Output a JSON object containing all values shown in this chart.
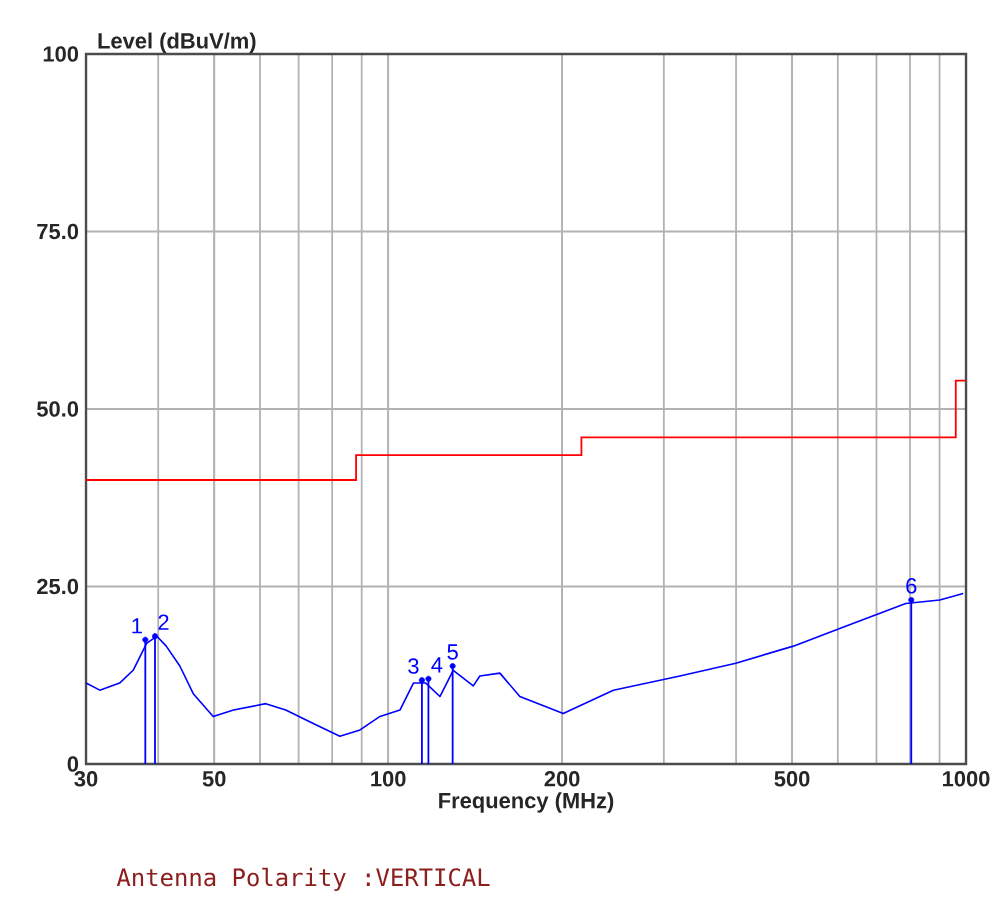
{
  "chart_data": {
    "type": "line",
    "xlabel": "Frequency (MHz)",
    "ylabel": "Level (dBuV/m)",
    "annotations": [
      {
        "text": "1",
        "x": 38.0,
        "y": 17.5
      },
      {
        "text": "2",
        "x": 39.5,
        "y": 18.0
      },
      {
        "text": "3",
        "x": 114.4,
        "y": 11.8
      },
      {
        "text": "4",
        "x": 117.4,
        "y": 12.0
      },
      {
        "text": "5",
        "x": 129.3,
        "y": 13.8
      },
      {
        "text": "6",
        "x": 804,
        "y": 23.1
      },
      "Antenna Polarity :VERTICAL"
    ],
    "log": "x",
    "grid": true,
    "xlim": [
      30,
      1000
    ],
    "ylim": [
      0,
      100
    ],
    "xticks": [
      30,
      50,
      100,
      200,
      500,
      1000
    ],
    "yticks": [
      0,
      {
        "value": 25,
        "label": "25.0"
      },
      {
        "value": 50,
        "label": "50.0"
      },
      {
        "value": 75,
        "label": "75.0"
      },
      100
    ],
    "series": [
      {
        "type": "step",
        "color": "#ff0000",
        "x": [
          30,
          88,
          216,
          960,
          1000
        ],
        "values": [
          40,
          43.5,
          46,
          54,
          54
        ]
      },
      {
        "color": "#0000ff",
        "x": [
          30.0,
          31.7,
          34.3,
          36.2,
          38.2,
          39.8,
          41.3,
          43.6,
          46.0,
          49.8,
          54.0,
          61.4,
          66.5,
          74.2,
          82.5,
          89.4,
          96.8,
          104.8,
          110.6,
          116.2,
          122.9,
          129.6,
          140.4,
          144.1,
          156.1,
          169.0,
          200.9,
          245.3,
          319.8,
          399.7,
          502.5,
          619,
          786.6,
          900.7,
          988.8
        ],
        "values": [
          11.4,
          10.4,
          11.4,
          13.2,
          17.0,
          18.0,
          16.6,
          13.8,
          9.9,
          6.7,
          7.6,
          8.5,
          7.6,
          5.7,
          3.9,
          4.8,
          6.7,
          7.6,
          11.4,
          11.4,
          9.5,
          13.2,
          11.0,
          12.4,
          12.8,
          9.5,
          7.1,
          10.4,
          12.4,
          14.2,
          16.6,
          19.4,
          22.6,
          23.1,
          24.0
        ]
      },
      {
        "type": "lollipop",
        "color": "#0000ff",
        "x": [
          38.0,
          39.5,
          114.4,
          117.4,
          129.3,
          804
        ],
        "values": [
          17.5,
          18.0,
          11.8,
          12.0,
          13.8,
          23.1
        ]
      }
    ]
  }
}
